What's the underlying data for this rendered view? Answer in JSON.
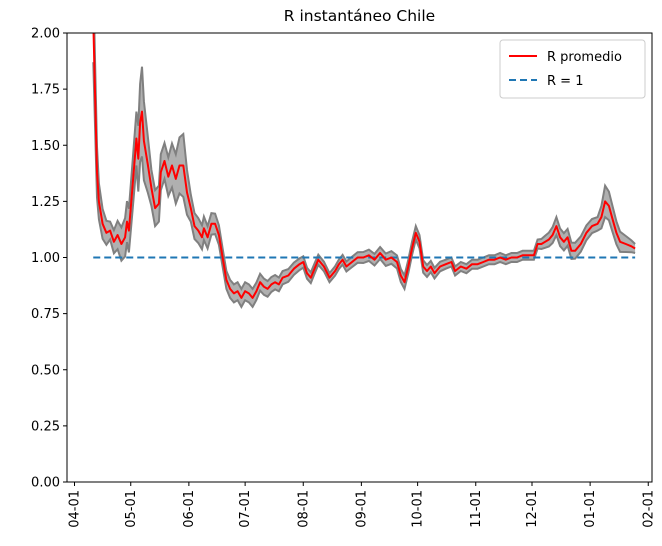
{
  "chart_data": {
    "type": "line",
    "title": "R instantáneo Chile",
    "xlabel": "",
    "ylabel": "",
    "ylim": [
      0,
      2
    ],
    "xlim": [
      "2020-03-28",
      "2021-02-03"
    ],
    "yticks": [
      "0.00",
      "0.25",
      "0.50",
      "0.75",
      "1.00",
      "1.25",
      "1.50",
      "1.75",
      "2.00"
    ],
    "xticks": [
      {
        "date": "2020-04-01",
        "label": "04-01"
      },
      {
        "date": "2020-05-01",
        "label": "05-01"
      },
      {
        "date": "2020-06-01",
        "label": "06-01"
      },
      {
        "date": "2020-07-01",
        "label": "07-01"
      },
      {
        "date": "2020-08-01",
        "label": "08-01"
      },
      {
        "date": "2020-09-01",
        "label": "09-01"
      },
      {
        "date": "2020-10-01",
        "label": "10-01"
      },
      {
        "date": "2020-11-01",
        "label": "11-01"
      },
      {
        "date": "2020-12-01",
        "label": "12-01"
      },
      {
        "date": "2021-01-01",
        "label": "01-01"
      },
      {
        "date": "2021-02-01",
        "label": "02-01"
      }
    ],
    "grid": false,
    "legend_position": "top-right",
    "colors": {
      "mean": "#ff0000",
      "band": "#b0b0b0",
      "band_edge": "#808080",
      "reference": "#1f77b4"
    },
    "series": [
      {
        "name": "R promedio",
        "points": [
          [
            "2020-04-11",
            2.05
          ],
          [
            "2020-04-12",
            1.72
          ],
          [
            "2020-04-13",
            1.38
          ],
          [
            "2020-04-14",
            1.25
          ],
          [
            "2020-04-16",
            1.15
          ],
          [
            "2020-04-18",
            1.11
          ],
          [
            "2020-04-20",
            1.12
          ],
          [
            "2020-04-22",
            1.07
          ],
          [
            "2020-04-24",
            1.1
          ],
          [
            "2020-04-26",
            1.06
          ],
          [
            "2020-04-28",
            1.09
          ],
          [
            "2020-04-29",
            1.16
          ],
          [
            "2020-04-30",
            1.12
          ],
          [
            "2020-05-02",
            1.32
          ],
          [
            "2020-05-04",
            1.53
          ],
          [
            "2020-05-05",
            1.44
          ],
          [
            "2020-05-06",
            1.6
          ],
          [
            "2020-05-07",
            1.65
          ],
          [
            "2020-05-08",
            1.52
          ],
          [
            "2020-05-10",
            1.42
          ],
          [
            "2020-05-12",
            1.31
          ],
          [
            "2020-05-14",
            1.22
          ],
          [
            "2020-05-16",
            1.24
          ],
          [
            "2020-05-17",
            1.38
          ],
          [
            "2020-05-19",
            1.43
          ],
          [
            "2020-05-21",
            1.36
          ],
          [
            "2020-05-23",
            1.41
          ],
          [
            "2020-05-25",
            1.35
          ],
          [
            "2020-05-27",
            1.41
          ],
          [
            "2020-05-29",
            1.41
          ],
          [
            "2020-05-31",
            1.29
          ],
          [
            "2020-06-02",
            1.22
          ],
          [
            "2020-06-04",
            1.14
          ],
          [
            "2020-06-06",
            1.12
          ],
          [
            "2020-06-08",
            1.09
          ],
          [
            "2020-06-09",
            1.13
          ],
          [
            "2020-06-11",
            1.09
          ],
          [
            "2020-06-13",
            1.15
          ],
          [
            "2020-06-15",
            1.15
          ],
          [
            "2020-06-17",
            1.1
          ],
          [
            "2020-06-19",
            1.0
          ],
          [
            "2020-06-21",
            0.9
          ],
          [
            "2020-06-23",
            0.86
          ],
          [
            "2020-06-25",
            0.84
          ],
          [
            "2020-06-27",
            0.85
          ],
          [
            "2020-06-29",
            0.82
          ],
          [
            "2020-07-01",
            0.85
          ],
          [
            "2020-07-03",
            0.84
          ],
          [
            "2020-07-05",
            0.82
          ],
          [
            "2020-07-07",
            0.85
          ],
          [
            "2020-07-09",
            0.89
          ],
          [
            "2020-07-11",
            0.87
          ],
          [
            "2020-07-13",
            0.86
          ],
          [
            "2020-07-15",
            0.88
          ],
          [
            "2020-07-17",
            0.89
          ],
          [
            "2020-07-19",
            0.88
          ],
          [
            "2020-07-21",
            0.91
          ],
          [
            "2020-07-24",
            0.92
          ],
          [
            "2020-07-27",
            0.95
          ],
          [
            "2020-07-30",
            0.97
          ],
          [
            "2020-08-01",
            0.98
          ],
          [
            "2020-08-03",
            0.93
          ],
          [
            "2020-08-05",
            0.91
          ],
          [
            "2020-08-07",
            0.95
          ],
          [
            "2020-08-09",
            0.99
          ],
          [
            "2020-08-12",
            0.96
          ],
          [
            "2020-08-15",
            0.91
          ],
          [
            "2020-08-18",
            0.94
          ],
          [
            "2020-08-20",
            0.97
          ],
          [
            "2020-08-22",
            0.99
          ],
          [
            "2020-08-24",
            0.96
          ],
          [
            "2020-08-27",
            0.98
          ],
          [
            "2020-08-30",
            1.0
          ],
          [
            "2020-09-02",
            1.0
          ],
          [
            "2020-09-05",
            1.01
          ],
          [
            "2020-09-08",
            0.99
          ],
          [
            "2020-09-11",
            1.02
          ],
          [
            "2020-09-14",
            0.99
          ],
          [
            "2020-09-17",
            1.0
          ],
          [
            "2020-09-20",
            0.98
          ],
          [
            "2020-09-22",
            0.92
          ],
          [
            "2020-09-24",
            0.89
          ],
          [
            "2020-09-26",
            0.96
          ],
          [
            "2020-09-28",
            1.04
          ],
          [
            "2020-09-30",
            1.11
          ],
          [
            "2020-10-02",
            1.07
          ],
          [
            "2020-10-04",
            0.96
          ],
          [
            "2020-10-06",
            0.94
          ],
          [
            "2020-10-08",
            0.96
          ],
          [
            "2020-10-10",
            0.93
          ],
          [
            "2020-10-13",
            0.96
          ],
          [
            "2020-10-16",
            0.97
          ],
          [
            "2020-10-19",
            0.98
          ],
          [
            "2020-10-21",
            0.94
          ],
          [
            "2020-10-24",
            0.96
          ],
          [
            "2020-10-27",
            0.95
          ],
          [
            "2020-10-30",
            0.97
          ],
          [
            "2020-11-02",
            0.97
          ],
          [
            "2020-11-05",
            0.98
          ],
          [
            "2020-11-08",
            0.99
          ],
          [
            "2020-11-11",
            0.99
          ],
          [
            "2020-11-14",
            1.0
          ],
          [
            "2020-11-17",
            0.99
          ],
          [
            "2020-11-20",
            1.0
          ],
          [
            "2020-11-23",
            1.0
          ],
          [
            "2020-11-26",
            1.01
          ],
          [
            "2020-11-29",
            1.01
          ],
          [
            "2020-12-02",
            1.01
          ],
          [
            "2020-12-04",
            1.06
          ],
          [
            "2020-12-06",
            1.06
          ],
          [
            "2020-12-08",
            1.07
          ],
          [
            "2020-12-10",
            1.08
          ],
          [
            "2020-12-12",
            1.1
          ],
          [
            "2020-12-14",
            1.14
          ],
          [
            "2020-12-16",
            1.09
          ],
          [
            "2020-12-18",
            1.07
          ],
          [
            "2020-12-20",
            1.09
          ],
          [
            "2020-12-22",
            1.03
          ],
          [
            "2020-12-24",
            1.03
          ],
          [
            "2020-12-27",
            1.06
          ],
          [
            "2020-12-30",
            1.11
          ],
          [
            "2021-01-02",
            1.14
          ],
          [
            "2021-01-05",
            1.15
          ],
          [
            "2021-01-07",
            1.18
          ],
          [
            "2021-01-09",
            1.25
          ],
          [
            "2021-01-11",
            1.23
          ],
          [
            "2021-01-13",
            1.17
          ],
          [
            "2021-01-15",
            1.11
          ],
          [
            "2021-01-17",
            1.07
          ],
          [
            "2021-01-20",
            1.06
          ],
          [
            "2021-01-23",
            1.05
          ],
          [
            "2021-01-25",
            1.04
          ]
        ]
      },
      {
        "name": "R = 1",
        "points": [
          [
            "2020-04-11",
            1.0
          ],
          [
            "2021-01-25",
            1.0
          ]
        ]
      }
    ],
    "band_width": [
      [
        "2020-04-11",
        0.18
      ],
      [
        "2020-04-14",
        0.08
      ],
      [
        "2020-04-20",
        0.04
      ],
      [
        "2020-05-04",
        0.12
      ],
      [
        "2020-05-07",
        0.2
      ],
      [
        "2020-05-12",
        0.08
      ],
      [
        "2020-05-20",
        0.08
      ],
      [
        "2020-05-25",
        0.11
      ],
      [
        "2020-05-29",
        0.14
      ],
      [
        "2020-06-02",
        0.06
      ],
      [
        "2020-06-20",
        0.04
      ],
      [
        "2020-07-05",
        0.04
      ],
      [
        "2020-07-20",
        0.03
      ],
      [
        "2020-08-15",
        0.02
      ],
      [
        "2020-09-25",
        0.03
      ],
      [
        "2020-10-01",
        0.03
      ],
      [
        "2020-10-15",
        0.02
      ],
      [
        "2020-12-05",
        0.02
      ],
      [
        "2020-12-14",
        0.04
      ],
      [
        "2021-01-05",
        0.03
      ],
      [
        "2021-01-09",
        0.07
      ],
      [
        "2021-01-25",
        0.02
      ]
    ]
  }
}
